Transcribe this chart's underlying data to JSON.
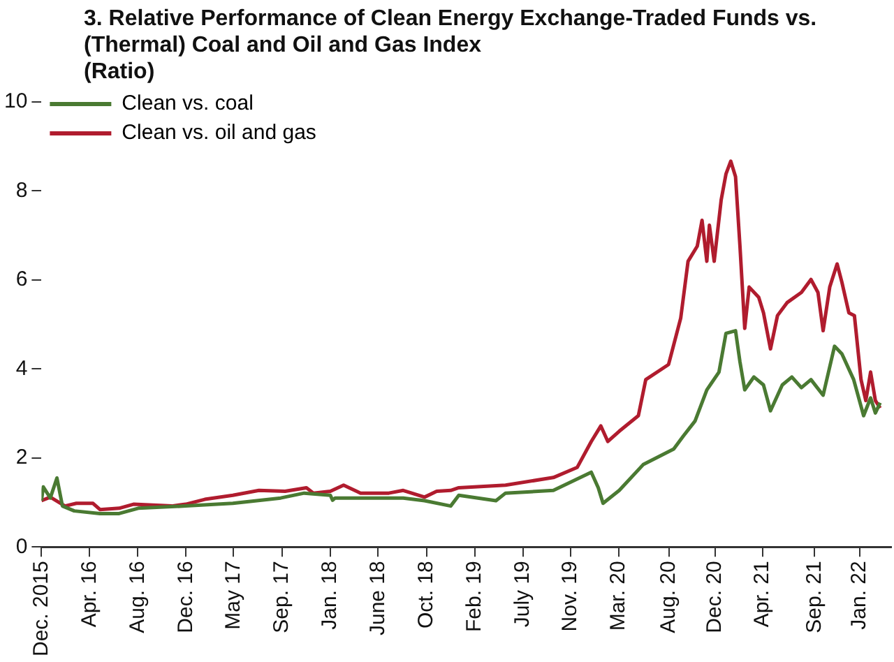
{
  "chart_data": {
    "type": "line",
    "title": "3. Relative Performance of Clean Energy Exchange-Traded Funds vs. (Thermal) Coal and Oil and Gas Index",
    "subtitle": "(Ratio)",
    "xlim": [
      "2015-12-01",
      "2022-03-28"
    ],
    "xticks": [
      {
        "value": "2015-12-01",
        "label": "Dec. 2015"
      },
      {
        "value": "2016-04-10",
        "label": "Apr. 16"
      },
      {
        "value": "2016-08-19",
        "label": "Aug. 16"
      },
      {
        "value": "2016-12-28",
        "label": "Dec. 16"
      },
      {
        "value": "2017-05-06",
        "label": "May 17"
      },
      {
        "value": "2017-09-15",
        "label": "Sep. 17"
      },
      {
        "value": "2018-01-24",
        "label": "Jan. 18"
      },
      {
        "value": "2018-06-03",
        "label": "June 18"
      },
      {
        "value": "2018-10-12",
        "label": "Oct. 18"
      },
      {
        "value": "2019-02-20",
        "label": "Feb. 19"
      },
      {
        "value": "2019-07-01",
        "label": "July 19"
      },
      {
        "value": "2019-11-08",
        "label": "Nov. 19"
      },
      {
        "value": "2020-03-17",
        "label": "Mar. 20"
      },
      {
        "value": "2020-08-01",
        "label": "Aug. 20"
      },
      {
        "value": "2020-12-04",
        "label": "Dec. 20"
      },
      {
        "value": "2021-04-13",
        "label": "Apr. 21"
      },
      {
        "value": "2021-09-01",
        "label": "Sep. 21"
      },
      {
        "value": "2022-01-01",
        "label": "Jan. 22"
      }
    ],
    "ylim": [
      0,
      10
    ],
    "yticks": [
      0,
      2,
      4,
      6,
      8,
      10
    ],
    "grid": false,
    "legend": "top left",
    "marker": "none",
    "line_style": "solid",
    "series": [
      {
        "name": "Clean vs. coal",
        "color": "#4a7a32",
        "x": [
          "2015-12-01",
          "2015-12-06",
          "2015-12-25",
          "2016-01-12",
          "2016-01-27",
          "2016-02-28",
          "2016-05-08",
          "2016-06-29",
          "2016-08-20",
          "2016-12-27",
          "2017-05-04",
          "2017-09-11",
          "2017-11-14",
          "2018-01-24",
          "2018-01-30",
          "2018-02-06",
          "2018-04-16",
          "2018-08-10",
          "2018-10-07",
          "2018-12-17",
          "2019-01-08",
          "2019-04-19",
          "2019-05-15",
          "2019-09-22",
          "2020-01-03",
          "2020-01-22",
          "2020-02-04",
          "2020-03-19",
          "2020-05-23",
          "2020-08-14",
          "2020-09-09",
          "2020-10-11",
          "2020-11-12",
          "2020-12-15",
          "2021-01-03",
          "2021-01-29",
          "2021-02-10",
          "2021-02-23",
          "2021-03-20",
          "2021-04-15",
          "2021-05-04",
          "2021-06-05",
          "2021-07-01",
          "2021-07-27",
          "2021-08-22",
          "2021-09-24",
          "2021-10-25",
          "2021-11-14",
          "2021-12-16",
          "2022-01-12",
          "2022-01-31",
          "2022-02-13",
          "2022-02-26"
        ],
        "values": [
          1.04,
          1.35,
          1.1,
          1.55,
          0.92,
          0.81,
          0.75,
          0.75,
          0.87,
          0.92,
          0.98,
          1.1,
          1.21,
          1.16,
          1.05,
          1.1,
          1.1,
          1.1,
          1.04,
          0.92,
          1.16,
          1.04,
          1.21,
          1.27,
          1.68,
          1.33,
          0.98,
          1.27,
          1.85,
          2.2,
          2.49,
          2.83,
          3.53,
          3.93,
          4.8,
          4.86,
          4.16,
          3.53,
          3.82,
          3.64,
          3.06,
          3.64,
          3.82,
          3.58,
          3.76,
          3.41,
          4.51,
          4.34,
          3.76,
          2.95,
          3.35,
          3.01,
          3.24
        ]
      },
      {
        "name": "Clean vs. oil and gas",
        "color": "#b01c2e",
        "x": [
          "2015-12-01",
          "2015-12-25",
          "2016-02-03",
          "2016-03-05",
          "2016-04-19",
          "2016-05-08",
          "2016-06-29",
          "2016-08-07",
          "2016-11-19",
          "2016-12-27",
          "2017-02-17",
          "2017-05-04",
          "2017-07-14",
          "2017-09-23",
          "2017-11-20",
          "2017-12-09",
          "2018-01-24",
          "2018-03-01",
          "2018-04-16",
          "2018-07-02",
          "2018-08-10",
          "2018-10-07",
          "2018-11-09",
          "2018-12-17",
          "2019-01-08",
          "2019-05-15",
          "2019-09-22",
          "2019-11-26",
          "2020-01-03",
          "2020-01-29",
          "2020-02-17",
          "2020-03-19",
          "2020-05-10",
          "2020-05-30",
          "2020-07-31",
          "2020-09-02",
          "2020-09-22",
          "2020-10-17",
          "2020-10-30",
          "2020-11-12",
          "2020-11-19",
          "2020-12-02",
          "2020-12-21",
          "2021-01-03",
          "2021-01-16",
          "2021-01-29",
          "2021-02-10",
          "2021-02-23",
          "2021-03-07",
          "2021-04-02",
          "2021-04-15",
          "2021-05-04",
          "2021-05-23",
          "2021-06-18",
          "2021-07-27",
          "2021-08-22",
          "2021-09-10",
          "2021-09-24",
          "2021-10-12",
          "2021-11-01",
          "2021-11-14",
          "2021-12-03",
          "2021-12-18",
          "2022-01-05",
          "2022-01-18",
          "2022-01-31",
          "2022-02-13",
          "2022-02-26"
        ],
        "values": [
          1.04,
          1.12,
          0.92,
          0.98,
          0.98,
          0.84,
          0.87,
          0.96,
          0.92,
          0.96,
          1.07,
          1.16,
          1.27,
          1.25,
          1.33,
          1.21,
          1.25,
          1.39,
          1.21,
          1.21,
          1.27,
          1.12,
          1.25,
          1.27,
          1.33,
          1.39,
          1.56,
          1.79,
          2.37,
          2.72,
          2.37,
          2.6,
          2.95,
          3.76,
          4.1,
          5.14,
          6.42,
          6.76,
          7.34,
          6.42,
          7.23,
          6.42,
          7.8,
          8.38,
          8.67,
          8.32,
          6.76,
          4.91,
          5.84,
          5.61,
          5.26,
          4.45,
          5.2,
          5.49,
          5.72,
          6.01,
          5.72,
          4.86,
          5.84,
          6.36,
          5.95,
          5.26,
          5.2,
          3.76,
          3.29,
          3.93,
          3.29,
          3.12
        ]
      }
    ]
  }
}
